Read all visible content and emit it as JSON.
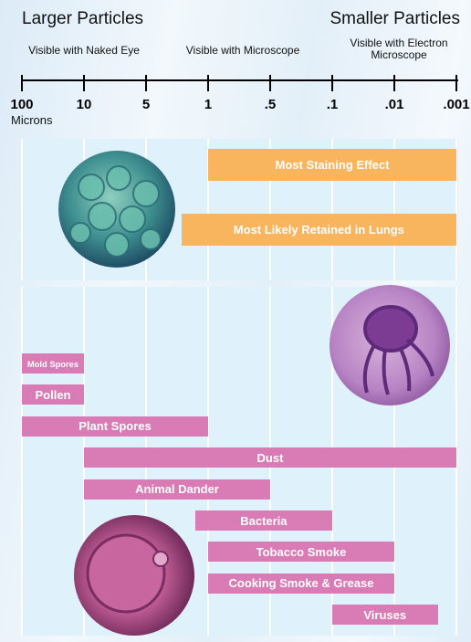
{
  "chart_data": {
    "type": "range-bar",
    "left_heading": "Larger Particles",
    "right_heading": "Smaller Particles",
    "visibility_labels": [
      "Visible with Naked Eye",
      "Visible with Microscope",
      "Visible with Electron Microscope"
    ],
    "x_unit_label": "Microns",
    "log_scale": true,
    "grid": true,
    "xlim": [
      100,
      0.001
    ],
    "xticks": [
      100,
      10,
      5,
      1,
      {
        "value": 0.5,
        "label": ".5"
      },
      {
        "value": 0.1,
        "label": ".1"
      },
      {
        "value": 0.01,
        "label": ".01"
      },
      {
        "value": 0.001,
        "label": ".001"
      }
    ],
    "panels": [
      {
        "color": "#f8b55e",
        "bars": [
          {
            "label": "Most Staining Effect",
            "range": [
              1,
              0.001
            ]
          },
          {
            "label": "Most Likely Retained in Lungs",
            "range": [
              2,
              0.001
            ]
          }
        ]
      },
      {
        "color": "#d97bb5",
        "bars": [
          {
            "label": "Mold Spores",
            "range": [
              100,
              10
            ]
          },
          {
            "label": "Pollen",
            "range": [
              100,
              10
            ]
          },
          {
            "label": "Plant Spores",
            "range": [
              100,
              1
            ]
          },
          {
            "label": "Dust",
            "range": [
              10,
              0.001
            ]
          },
          {
            "label": "Animal Dander",
            "range": [
              10,
              0.5
            ]
          },
          {
            "label": "Bacteria",
            "range": [
              1.4,
              0.1
            ]
          },
          {
            "label": "Tobacco Smoke",
            "range": [
              1,
              0.01
            ]
          },
          {
            "label": "Cooking Smoke & Grease",
            "range": [
              1,
              0.01
            ]
          },
          {
            "label": "Viruses",
            "range": [
              0.1,
              0.002
            ]
          }
        ]
      }
    ]
  }
}
